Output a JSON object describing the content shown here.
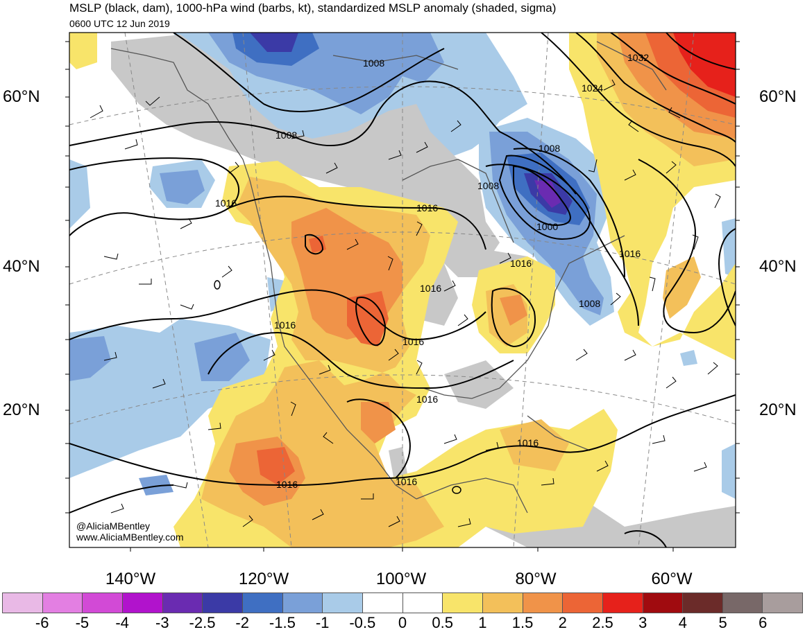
{
  "header": {
    "title": "MSLP (black, dam), 1000-hPa wind (barbs, kt), standardized MSLP anomaly (shaded, sigma)",
    "valid_time": "0600 UTC 12 Jun 2019"
  },
  "axes": {
    "lat_left": [
      "60°N",
      "40°N",
      "20°N"
    ],
    "lat_right": [
      "60°N",
      "40°N",
      "20°N"
    ],
    "lon": [
      "140°W",
      "120°W",
      "100°W",
      "80°W",
      "60°W"
    ]
  },
  "isobar_labels": [
    "1008",
    "1008",
    "1008",
    "1008",
    "1008",
    "1016",
    "1016",
    "1016",
    "1016",
    "1016",
    "1016",
    "1016",
    "1016",
    "1016",
    "1016",
    "1016",
    "1000",
    "1024",
    "1032"
  ],
  "colorbar": {
    "ticks": [
      "-6",
      "-5",
      "-4",
      "-3",
      "-2.5",
      "-2",
      "-1.5",
      "-1",
      "-0.5",
      "0",
      "0.5",
      "1",
      "1.5",
      "2",
      "2.5",
      "3",
      "4",
      "5",
      "6"
    ],
    "colors": [
      "#e9b9e6",
      "#e37fe2",
      "#d24ad6",
      "#b113cc",
      "#6a2bb1",
      "#3b3aa6",
      "#3f6fc2",
      "#7aa0d8",
      "#a9cbe8",
      "#ffffff",
      "#ffffff",
      "#f8e46a",
      "#f3c05a",
      "#f09349",
      "#ec6536",
      "#e6211b",
      "#a00b0f",
      "#6b2b29",
      "#786868",
      "#a89d9d"
    ]
  },
  "credits": {
    "handle": "@AliciaMBentley",
    "site": "www.AliciaMBentley.com"
  }
}
